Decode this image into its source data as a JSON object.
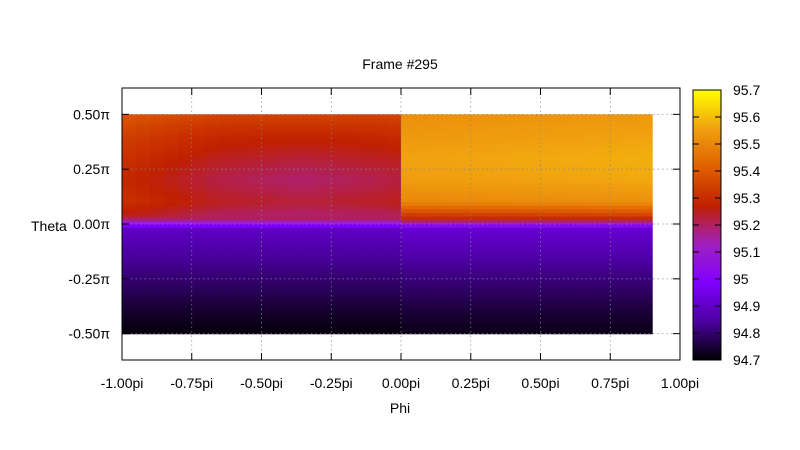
{
  "chart_data": {
    "type": "heatmap",
    "title": "Frame #295",
    "xlabel": "Phi",
    "ylabel": "Theta",
    "xlim": [
      -1.0,
      1.0
    ],
    "ylim": [
      -0.62,
      0.62
    ],
    "x_unit": "pi",
    "y_unit": "pi",
    "x_ticks": [
      -1.0,
      -0.75,
      -0.5,
      -0.25,
      0.0,
      0.25,
      0.5,
      0.75,
      1.0
    ],
    "x_tick_labels": [
      "-1.00pi",
      "-0.75pi",
      "-0.50pi",
      "-0.25pi",
      "0.00pi",
      "0.25pi",
      "0.50pi",
      "0.75pi",
      "1.00pi"
    ],
    "y_ticks": [
      0.5,
      0.25,
      0.0,
      -0.25,
      -0.5
    ],
    "y_tick_labels": [
      "0.50π",
      "0.25π",
      "0.00π",
      "-0.25π",
      "-0.50π"
    ],
    "grid": true,
    "data_extent": {
      "x": [
        -1.0,
        0.9
      ],
      "y": [
        -0.5,
        0.5
      ]
    },
    "colorbar": {
      "range": [
        94.7,
        95.7
      ],
      "ticks": [
        95.7,
        95.6,
        95.5,
        95.4,
        95.3,
        95.2,
        95.1,
        95,
        94.9,
        94.8,
        94.7
      ],
      "tick_labels": [
        "95.7",
        "95.6",
        "95.5",
        "95.4",
        "95.3",
        "95.2",
        "95.1",
        "95",
        "94.9",
        "94.8",
        "94.7"
      ],
      "colors": [
        "#000000",
        "#4b00a0",
        "#8000ff",
        "#a020c0",
        "#c02000",
        "#e06000",
        "#f0a010",
        "#ffff00"
      ]
    },
    "field": {
      "theta_rows": [
        0.5,
        0.4,
        0.3,
        0.2,
        0.1,
        0.02,
        -0.02,
        -0.1,
        -0.2,
        -0.3,
        -0.4,
        -0.5
      ],
      "left_half_values": [
        95.35,
        95.3,
        95.27,
        95.25,
        95.27,
        95.2,
        94.9,
        94.86,
        94.82,
        94.78,
        94.74,
        94.71
      ],
      "right_half_values": [
        95.52,
        95.54,
        95.56,
        95.55,
        95.5,
        95.28,
        94.92,
        94.88,
        94.83,
        94.79,
        94.75,
        94.72
      ]
    }
  }
}
